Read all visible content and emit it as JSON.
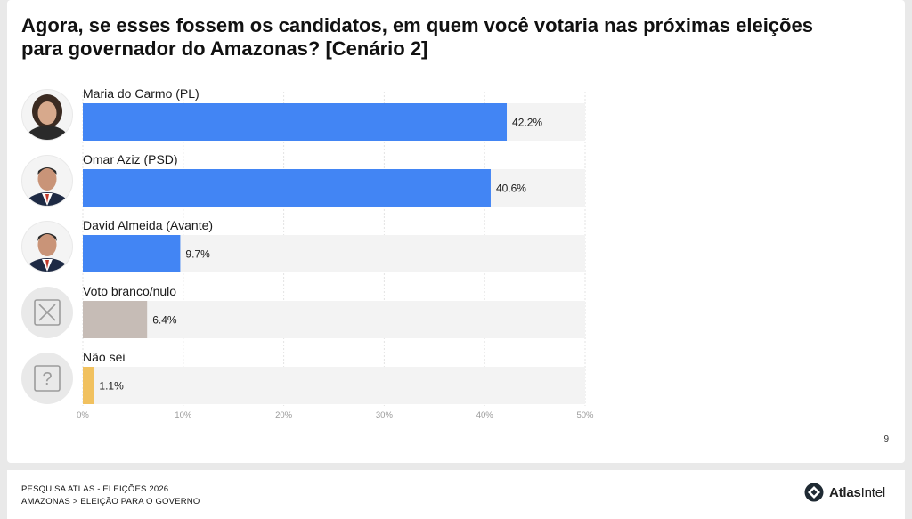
{
  "title": "Agora, se esses fossem os candidatos, em quem você votaria nas próximas eleições para governador do Amazonas? [Cenário 2]",
  "page_number": "9",
  "footer": {
    "line1": "PESQUISA ATLAS - ELEIÇÕES 2026",
    "line2": "AMAZONAS > ELEIÇÃO PARA O GOVERNO"
  },
  "brand": {
    "bold": "Atlas",
    "regular": "Intel"
  },
  "colors": {
    "blue": "#4285f4",
    "gray": "#c6bcb6",
    "yellow": "#f1c15f",
    "track": "#f3f3f3"
  },
  "chart_data": {
    "type": "bar",
    "orientation": "horizontal",
    "categories": [
      "Maria do Carmo (PL)",
      "Omar Aziz (PSD)",
      "David Almeida (Avante)",
      "Voto branco/nulo",
      "Não sei"
    ],
    "values": [
      42.2,
      40.6,
      9.7,
      6.4,
      1.1
    ],
    "value_labels": [
      "42.2%",
      "40.6%",
      "9.7%",
      "6.4%",
      "1.1%"
    ],
    "bar_colors": [
      "#4285f4",
      "#4285f4",
      "#4285f4",
      "#c6bcb6",
      "#f1c15f"
    ],
    "avatars": [
      "woman-portrait",
      "man-portrait",
      "man-portrait",
      "x-box-icon",
      "question-box-icon"
    ],
    "xlim": [
      0,
      50
    ],
    "x_ticks": [
      "0%",
      "10%",
      "20%",
      "30%",
      "40%",
      "50%"
    ],
    "xlabel": "",
    "ylabel": "",
    "grid": true,
    "legend": "none"
  }
}
